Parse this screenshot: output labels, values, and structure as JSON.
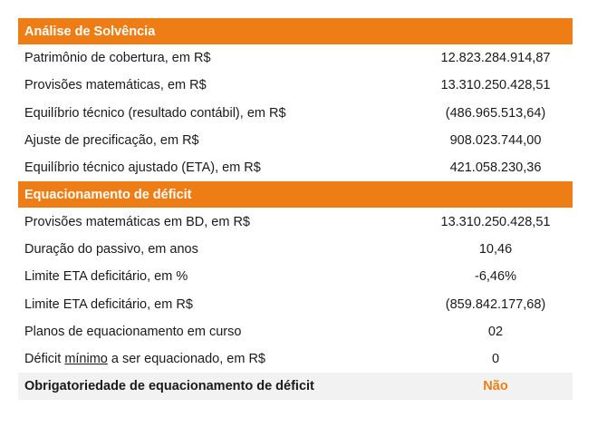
{
  "section1": {
    "title": "Análise de Solvência",
    "rows": [
      {
        "label": "Patrimônio de cobertura, em R$",
        "value": "12.823.284.914,87"
      },
      {
        "label": "Provisões matemáticas, em R$",
        "value": "13.310.250.428,51"
      },
      {
        "label": "Equilíbrio técnico (resultado contábil), em R$",
        "value": "(486.965.513,64)"
      },
      {
        "label": "Ajuste de precificação, em R$",
        "value": "908.023.744,00"
      },
      {
        "label": "Equilíbrio técnico ajustado (ETA), em R$",
        "value": "421.058.230,36"
      }
    ]
  },
  "section2": {
    "title": "Equacionamento de déficit",
    "rows": [
      {
        "label": "Provisões matemáticas em BD, em R$",
        "value": "13.310.250.428,51"
      },
      {
        "label": "Duração do passivo, em anos",
        "value": "10,46"
      },
      {
        "label": "Limite ETA deficitário, em %",
        "value": "-6,46%"
      },
      {
        "label": "Limite ETA deficitário, em R$",
        "value": "(859.842.177,68)"
      },
      {
        "label": "Planos de equacionamento em curso",
        "value": "02"
      }
    ],
    "deficit_row": {
      "label_before": "Déficit ",
      "label_underlined": "mínimo",
      "label_after": " a ser equacionado, em R$",
      "value": "0"
    },
    "final_row": {
      "label": "Obrigatoriedade de equacionamento de déficit",
      "value": "Não"
    }
  },
  "colors": {
    "header_bg": "#ed7d14",
    "final_row_bg": "#f2f2f2",
    "final_value": "#ed7d14"
  }
}
